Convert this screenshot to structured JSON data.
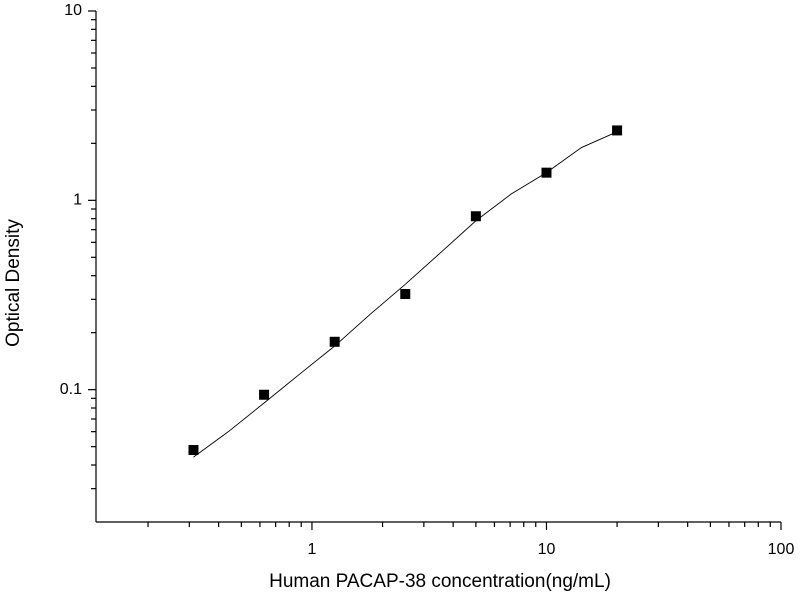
{
  "chart_data": {
    "type": "scatter",
    "x_label": "Human PACAP-38 concentration(ng/mL)",
    "y_label": "Optical Density",
    "xscale": "log",
    "yscale": "log",
    "xlim": [
      0.12,
      100
    ],
    "ylim": [
      0.02,
      10
    ],
    "xticks": [
      1,
      10,
      100
    ],
    "yticks": [
      0.1,
      1,
      10
    ],
    "xminorticks": [
      0.2,
      0.3,
      0.4,
      0.5,
      0.6,
      0.7,
      0.8,
      0.9,
      2,
      3,
      4,
      5,
      6,
      7,
      8,
      9,
      20,
      30,
      40,
      50,
      60,
      70,
      80,
      90
    ],
    "yminorticks": [
      0.03,
      0.04,
      0.05,
      0.06,
      0.07,
      0.08,
      0.09,
      0.2,
      0.3,
      0.4,
      0.5,
      0.6,
      0.7,
      0.8,
      0.9,
      2,
      3,
      4,
      5,
      6,
      7,
      8,
      9
    ],
    "series": [
      {
        "style": "markers",
        "color": "#000000",
        "x": [
          0.3125,
          0.625,
          1.25,
          2.5,
          5,
          10,
          20
        ],
        "values": [
          0.048,
          0.094,
          0.179,
          0.32,
          0.824,
          1.4,
          2.34
        ]
      },
      {
        "style": "line",
        "color": "#000000",
        "x": [
          0.3125,
          0.44,
          0.625,
          0.88,
          1.25,
          1.77,
          2.5,
          3.54,
          5,
          7.07,
          10,
          14.1,
          20
        ],
        "values": [
          0.044,
          0.06,
          0.085,
          0.12,
          0.17,
          0.25,
          0.36,
          0.53,
          0.78,
          1.08,
          1.4,
          1.9,
          2.3
        ]
      }
    ]
  }
}
